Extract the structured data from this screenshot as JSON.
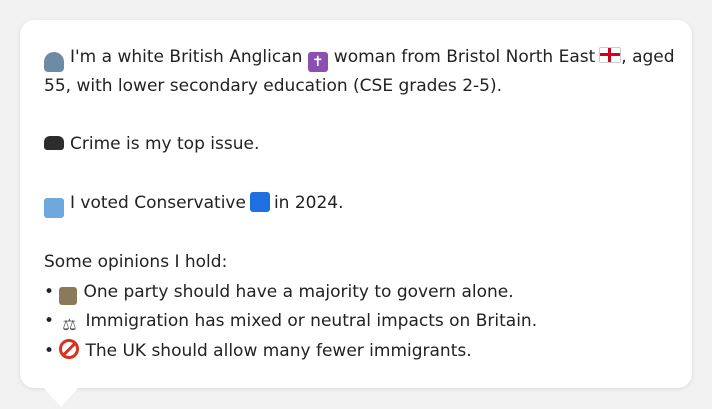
{
  "intro": {
    "part1": "I'm a white British Anglican",
    "part2": "woman from Bristol North East",
    "part3": ", aged",
    "line2": "55, with lower secondary education (CSE grades 2-5)."
  },
  "issue": "Crime is my top issue.",
  "vote": {
    "part1": "I voted Conservative",
    "part2": "in 2024."
  },
  "opinions": {
    "heading": "Some opinions I hold:",
    "bullet": "•",
    "items": [
      "One party should have a majority to govern alone.",
      "Immigration has mixed or neutral impacts on Britain.",
      "The UK should allow many fewer immigrants."
    ]
  },
  "icons": {
    "person": "person-icon",
    "cross": "latin-cross-icon",
    "flag": "england-flag-icon",
    "car": "police-car-icon",
    "ballot": "ballot-box-icon",
    "party": "blue-square-icon",
    "bank": "classical-building-icon",
    "scales": "balance-scale-icon",
    "noentry": "prohibited-icon"
  },
  "colors": {
    "cross": "#8a4fb0",
    "party": "#1e6fe0",
    "noentry": "#d9301f"
  }
}
